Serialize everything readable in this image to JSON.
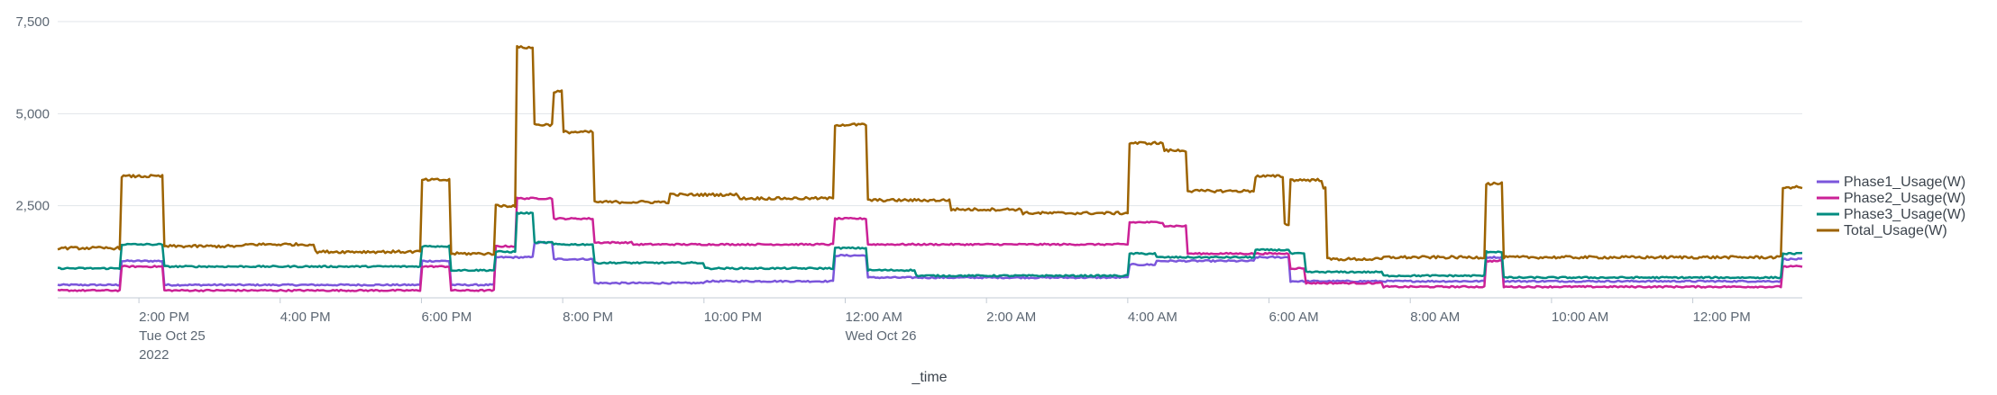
{
  "chart_data": {
    "type": "line",
    "title": "",
    "xlabel": "_time",
    "ylabel": "",
    "ylim": [
      0,
      7500
    ],
    "y_ticks": [
      {
        "value": 2500,
        "label": "2,500"
      },
      {
        "value": 5000,
        "label": "5,000"
      },
      {
        "value": 7500,
        "label": "7,500"
      }
    ],
    "x_range_hours": [
      12.85,
      37.55
    ],
    "x_ticks": [
      {
        "hour": 14,
        "lines": [
          "2:00 PM",
          "Tue Oct 25",
          "2022"
        ]
      },
      {
        "hour": 16,
        "lines": [
          "4:00 PM"
        ]
      },
      {
        "hour": 18,
        "lines": [
          "6:00 PM"
        ]
      },
      {
        "hour": 20,
        "lines": [
          "8:00 PM"
        ]
      },
      {
        "hour": 22,
        "lines": [
          "10:00 PM"
        ]
      },
      {
        "hour": 24,
        "lines": [
          "12:00 AM",
          "Wed Oct 26"
        ]
      },
      {
        "hour": 26,
        "lines": [
          "2:00 AM"
        ]
      },
      {
        "hour": 28,
        "lines": [
          "4:00 AM"
        ]
      },
      {
        "hour": 30,
        "lines": [
          "6:00 AM"
        ]
      },
      {
        "hour": 32,
        "lines": [
          "8:00 AM"
        ]
      },
      {
        "hour": 34,
        "lines": [
          "10:00 AM"
        ]
      },
      {
        "hour": 36,
        "lines": [
          "12:00 PM"
        ]
      }
    ],
    "grid": true,
    "legend_position": "right",
    "series": [
      {
        "name": "Phase1_Usage(W)",
        "color": "#7b56db",
        "steps": [
          [
            12.85,
            350
          ],
          [
            13.75,
            1000
          ],
          [
            14.35,
            350
          ],
          [
            18.0,
            1000
          ],
          [
            18.4,
            350
          ],
          [
            19.05,
            1100
          ],
          [
            19.6,
            1500
          ],
          [
            19.85,
            1050
          ],
          [
            20.45,
            400
          ],
          [
            22.0,
            450
          ],
          [
            23.85,
            1150
          ],
          [
            24.3,
            550
          ],
          [
            28.0,
            900
          ],
          [
            28.4,
            1000
          ],
          [
            29.8,
            1100
          ],
          [
            30.3,
            450
          ],
          [
            31.6,
            450
          ],
          [
            33.05,
            1100
          ],
          [
            33.3,
            450
          ],
          [
            37.25,
            1050
          ]
        ]
      },
      {
        "name": "Phase2_Usage(W)",
        "color": "#cb2196",
        "steps": [
          [
            12.85,
            200
          ],
          [
            13.75,
            850
          ],
          [
            14.35,
            200
          ],
          [
            18.0,
            850
          ],
          [
            18.4,
            200
          ],
          [
            19.05,
            1400
          ],
          [
            19.35,
            2700
          ],
          [
            19.85,
            2150
          ],
          [
            20.45,
            1500
          ],
          [
            21.0,
            1450
          ],
          [
            23.85,
            2150
          ],
          [
            24.3,
            1450
          ],
          [
            28.0,
            2050
          ],
          [
            28.5,
            1950
          ],
          [
            28.85,
            1200
          ],
          [
            29.8,
            1200
          ],
          [
            30.3,
            800
          ],
          [
            30.5,
            400
          ],
          [
            31.6,
            300
          ],
          [
            33.05,
            1000
          ],
          [
            33.3,
            300
          ],
          [
            37.25,
            850
          ]
        ]
      },
      {
        "name": "Phase3_Usage(W)",
        "color": "#008c80",
        "steps": [
          [
            12.85,
            800
          ],
          [
            13.75,
            1450
          ],
          [
            14.35,
            850
          ],
          [
            18.0,
            1400
          ],
          [
            18.4,
            750
          ],
          [
            19.05,
            1250
          ],
          [
            19.35,
            2300
          ],
          [
            19.6,
            1500
          ],
          [
            19.85,
            1450
          ],
          [
            20.45,
            950
          ],
          [
            22.0,
            800
          ],
          [
            23.85,
            1350
          ],
          [
            24.3,
            750
          ],
          [
            25.0,
            600
          ],
          [
            28.0,
            1200
          ],
          [
            28.4,
            1100
          ],
          [
            29.8,
            1300
          ],
          [
            30.3,
            1200
          ],
          [
            30.5,
            700
          ],
          [
            31.6,
            600
          ],
          [
            33.05,
            1250
          ],
          [
            33.3,
            550
          ],
          [
            37.25,
            1200
          ]
        ]
      },
      {
        "name": "Total_Usage(W)",
        "color": "#9d6300",
        "steps": [
          [
            12.85,
            1350
          ],
          [
            13.75,
            3300
          ],
          [
            14.35,
            1400
          ],
          [
            15.5,
            1450
          ],
          [
            16.5,
            1250
          ],
          [
            18.0,
            3200
          ],
          [
            18.4,
            1200
          ],
          [
            19.05,
            2500
          ],
          [
            19.35,
            6800
          ],
          [
            19.6,
            4700
          ],
          [
            19.85,
            5600
          ],
          [
            20.0,
            4500
          ],
          [
            20.45,
            2600
          ],
          [
            21.5,
            2800
          ],
          [
            22.5,
            2700
          ],
          [
            23.85,
            4700
          ],
          [
            24.3,
            2650
          ],
          [
            25.5,
            2400
          ],
          [
            26.5,
            2300
          ],
          [
            28.0,
            4200
          ],
          [
            28.5,
            4000
          ],
          [
            28.85,
            2900
          ],
          [
            29.8,
            3300
          ],
          [
            30.2,
            2000
          ],
          [
            30.3,
            3200
          ],
          [
            30.75,
            3000
          ],
          [
            30.8,
            1050
          ],
          [
            31.6,
            1100
          ],
          [
            33.05,
            3100
          ],
          [
            33.3,
            1100
          ],
          [
            37.25,
            3000
          ]
        ]
      }
    ]
  }
}
